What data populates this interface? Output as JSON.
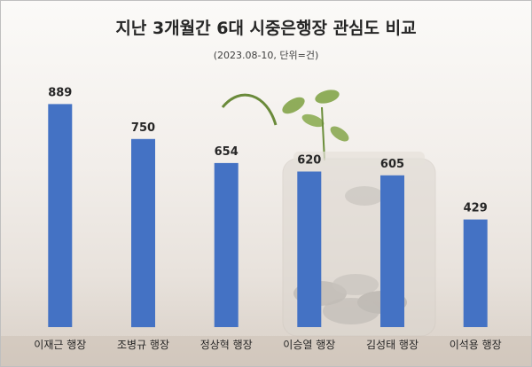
{
  "title": "지난 3개월간 6대 시중은행장 관심도 비교",
  "subtitle": "(2023.08-10, 단위=건)",
  "chart_data": {
    "type": "bar",
    "title": "지난 3개월간 6대 시중은행장 관심도 비교",
    "subtitle": "(2023.08-10, 단위=건)",
    "categories": [
      "이재근 행장",
      "조병규 행장",
      "정상혁 행장",
      "이승열 행장",
      "김성태 행장",
      "이석용 행장"
    ],
    "values": [
      889,
      750,
      654,
      620,
      605,
      429
    ],
    "ylim": [
      0,
      1000
    ],
    "grid": false,
    "legend": "none",
    "bar_color": "#4472c4",
    "label_color": "#262626"
  }
}
